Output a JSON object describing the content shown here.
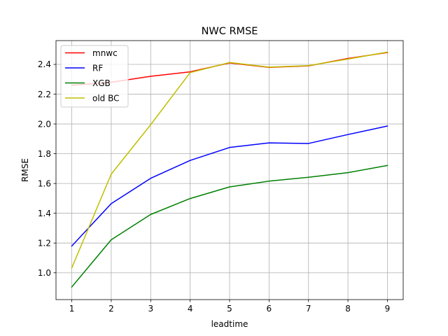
{
  "chart_data": {
    "type": "line",
    "title": "NWC RMSE",
    "xlabel": "leadtime",
    "ylabel": "RMSE",
    "x": [
      1,
      2,
      3,
      4,
      5,
      6,
      7,
      8,
      9
    ],
    "xticks": [
      "1",
      "2",
      "3",
      "4",
      "5",
      "6",
      "7",
      "8",
      "9"
    ],
    "yticks": [
      "1.0",
      "1.2",
      "1.4",
      "1.6",
      "1.8",
      "2.0",
      "2.2",
      "2.4"
    ],
    "xlim": [
      0.6,
      9.4
    ],
    "ylim": [
      0.82,
      2.56
    ],
    "grid": true,
    "legend_position": "upper-left",
    "series": [
      {
        "name": "mnwc",
        "color": "#ff0000",
        "values": [
          2.26,
          2.28,
          2.32,
          2.35,
          2.41,
          2.38,
          2.39,
          2.44,
          2.48
        ]
      },
      {
        "name": "RF",
        "color": "#0000ff",
        "values": [
          1.18,
          1.465,
          1.635,
          1.755,
          1.842,
          1.873,
          1.869,
          1.929,
          1.986
        ]
      },
      {
        "name": "XGB",
        "color": "#008000",
        "values": [
          0.905,
          1.222,
          1.392,
          1.499,
          1.577,
          1.616,
          1.642,
          1.673,
          1.721
        ]
      },
      {
        "name": "old BC",
        "color": "#bfbf00",
        "values": [
          1.033,
          1.663,
          1.995,
          2.345,
          2.413,
          2.382,
          2.392,
          2.436,
          2.483
        ]
      }
    ]
  }
}
